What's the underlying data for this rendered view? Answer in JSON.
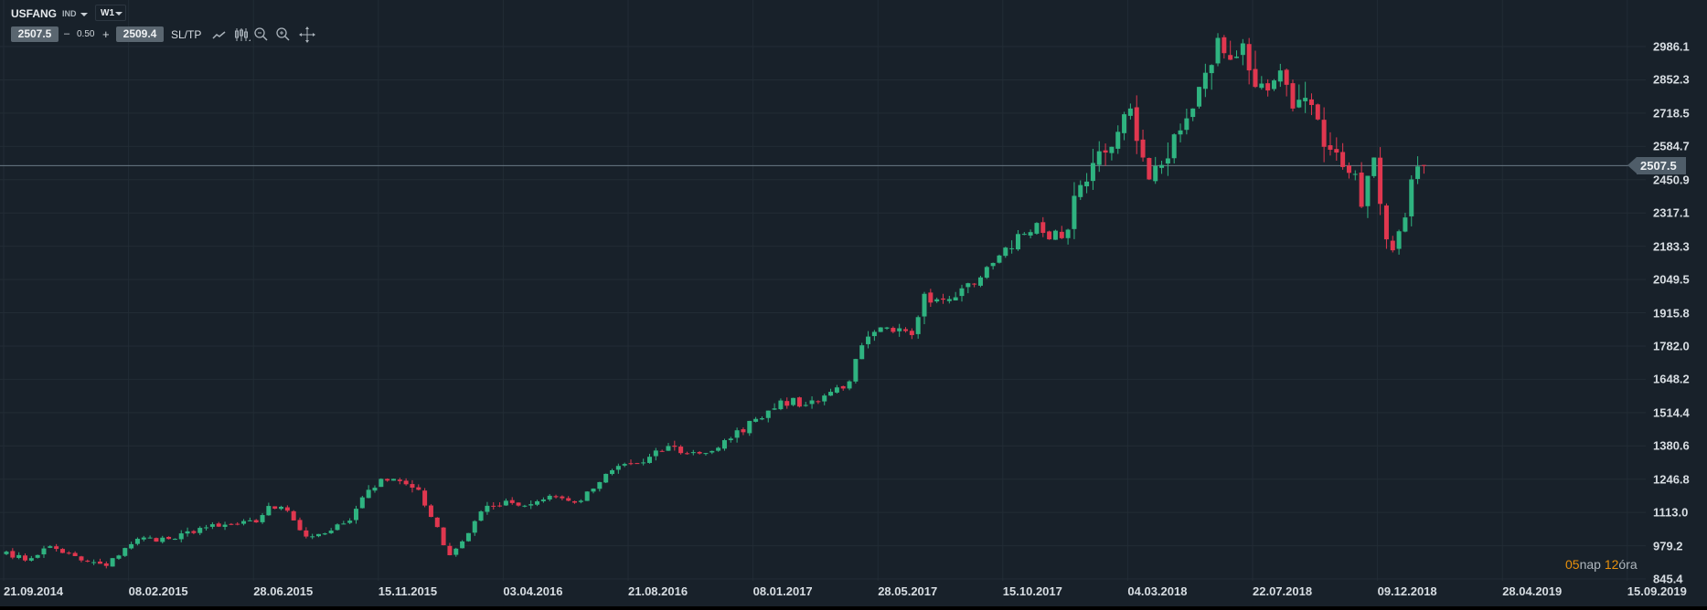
{
  "toolbar": {
    "symbol": "USFANG",
    "category": "IND",
    "timeframe": "W1",
    "bid": "2507.5",
    "minus": "–",
    "spread": "0.50",
    "plus": "+",
    "ask": "2509.4",
    "sltp_label": "SL/TP",
    "icons": [
      "line-chart-icon",
      "candlestick-icon",
      "zoom-out-icon",
      "zoom-in-icon",
      "crosshair-icon"
    ]
  },
  "countdown": {
    "days": "05",
    "days_unit": "nap",
    "hours": "12",
    "hours_unit": "óra"
  },
  "colors": {
    "background": "#18212a",
    "up": "#2fb380",
    "down": "#e0374f",
    "grid": "#222c35",
    "current_line": "#6b7a86",
    "countdown_accent": "#e8900c"
  },
  "chart_data": {
    "type": "candlestick",
    "interval": "weekly",
    "current_price": 2507.5,
    "current_price_label": "2507.5",
    "y_ticks": [
      "2986.1",
      "2852.3",
      "2718.5",
      "2584.7",
      "2450.9",
      "2317.1",
      "2183.3",
      "2049.5",
      "1915.8",
      "1782.0",
      "1648.2",
      "1514.4",
      "1380.6",
      "1246.8",
      "1113.0",
      "979.2",
      "845.4"
    ],
    "ylim": [
      845.4,
      2986.1
    ],
    "x_ticks": [
      "21.09.2014",
      "08.02.2015",
      "28.06.2015",
      "15.11.2015",
      "03.04.2016",
      "21.08.2016",
      "08.01.2017",
      "28.05.2017",
      "15.10.2017",
      "04.03.2018",
      "22.07.2018",
      "09.12.2018",
      "28.04.2019",
      "15.09.2019"
    ],
    "x_tick_weeks": 20,
    "close_anchors_week_value": [
      [
        0,
        955
      ],
      [
        3,
        920
      ],
      [
        7,
        977
      ],
      [
        12,
        920
      ],
      [
        16,
        898
      ],
      [
        19,
        970
      ],
      [
        21,
        1007
      ],
      [
        27,
        1007
      ],
      [
        31,
        1051
      ],
      [
        34,
        1056
      ],
      [
        40,
        1073
      ],
      [
        42,
        1139
      ],
      [
        45,
        1120
      ],
      [
        48,
        1016
      ],
      [
        52,
        1040
      ],
      [
        55,
        1080
      ],
      [
        58,
        1204
      ],
      [
        60,
        1248
      ],
      [
        62,
        1248
      ],
      [
        66,
        1204
      ],
      [
        68,
        1095
      ],
      [
        71,
        941
      ],
      [
        74,
        1030
      ],
      [
        76,
        1117
      ],
      [
        80,
        1160
      ],
      [
        83,
        1140
      ],
      [
        87,
        1180
      ],
      [
        90,
        1160
      ],
      [
        92,
        1160
      ],
      [
        95,
        1235
      ],
      [
        98,
        1300
      ],
      [
        102,
        1314
      ],
      [
        106,
        1380
      ],
      [
        109,
        1350
      ],
      [
        113,
        1360
      ],
      [
        116,
        1410
      ],
      [
        120,
        1489
      ],
      [
        124,
        1563
      ],
      [
        128,
        1545
      ],
      [
        132,
        1598
      ],
      [
        135,
        1640
      ],
      [
        136,
        1730
      ],
      [
        139,
        1839
      ],
      [
        142,
        1839
      ],
      [
        145,
        1826
      ],
      [
        147,
        1992
      ],
      [
        149,
        1970
      ],
      [
        153,
        2014
      ],
      [
        156,
        2058
      ],
      [
        159,
        2146
      ],
      [
        163,
        2233
      ],
      [
        165,
        2277
      ],
      [
        167,
        2211
      ],
      [
        170,
        2250
      ],
      [
        171,
        2386
      ],
      [
        174,
        2518
      ],
      [
        176,
        2560
      ],
      [
        177,
        2583
      ],
      [
        180,
        2737
      ],
      [
        182,
        2540
      ],
      [
        183,
        2452
      ],
      [
        185,
        2510
      ],
      [
        188,
        2649
      ],
      [
        190,
        2737
      ],
      [
        191,
        2824
      ],
      [
        193,
        2912
      ],
      [
        194,
        3021
      ],
      [
        196,
        2933
      ],
      [
        198,
        2999
      ],
      [
        200,
        2824
      ],
      [
        203,
        2850
      ],
      [
        204,
        2890
      ],
      [
        206,
        2737
      ],
      [
        208,
        2780
      ],
      [
        210,
        2693
      ],
      [
        211,
        2583
      ],
      [
        213,
        2560
      ],
      [
        216,
        2474
      ],
      [
        217,
        2342
      ],
      [
        219,
        2540
      ],
      [
        221,
        2211
      ],
      [
        222,
        2167
      ],
      [
        224,
        2299
      ],
      [
        225,
        2452
      ],
      [
        227,
        2507.5
      ]
    ]
  }
}
